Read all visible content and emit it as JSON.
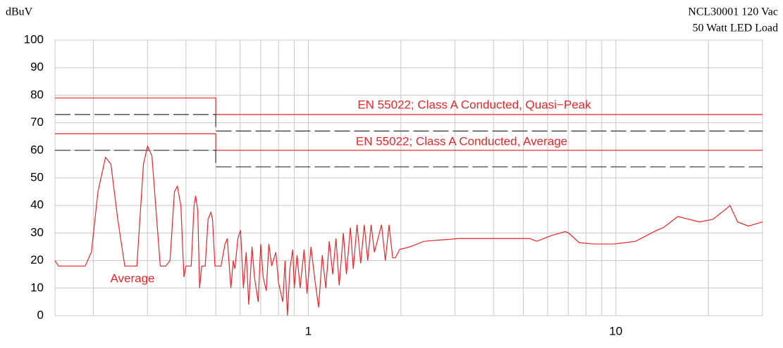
{
  "chart_data": {
    "type": "line",
    "y_label": "dBuV",
    "title_lines": [
      "NCL30001 120 Vac",
      "50 Watt LED Load"
    ],
    "log_x": true,
    "grid": true,
    "xlim": [
      0.15,
      30
    ],
    "xticks": [
      1,
      10
    ],
    "xminorticks": [
      0.2,
      0.3,
      0.4,
      0.5,
      0.6,
      0.7,
      0.8,
      0.9,
      2,
      3,
      4,
      5,
      6,
      7,
      8,
      9,
      20
    ],
    "ylim": [
      0,
      100
    ],
    "yticks": [
      0,
      10,
      20,
      30,
      40,
      50,
      60,
      70,
      80,
      90,
      100
    ],
    "series": [
      {
        "name": "EN 55022; Class A Conducted, Quasi−Peak",
        "color": "#e8262a",
        "dash": false,
        "x": [
          0.15,
          0.5,
          0.5,
          30
        ],
        "values": [
          79,
          79,
          73,
          73
        ]
      },
      {
        "name": "EN 55022; Class A Conducted, Average",
        "color": "#e8262a",
        "dash": false,
        "x": [
          0.15,
          0.5,
          0.5,
          30
        ],
        "values": [
          66,
          66,
          60,
          60
        ]
      },
      {
        "color": "#333333",
        "dash": true,
        "x": [
          0.15,
          0.5,
          0.5,
          30
        ],
        "values": [
          73,
          73,
          67,
          67
        ]
      },
      {
        "color": "#333333",
        "dash": true,
        "x": [
          0.15,
          0.5,
          0.5,
          30
        ],
        "values": [
          60,
          60,
          54,
          54
        ]
      },
      {
        "name": "Average",
        "color": "#e8262a",
        "dash": false,
        "x": [
          0.15,
          0.154,
          0.188,
          0.197,
          0.207,
          0.219,
          0.228,
          0.24,
          0.253,
          0.277,
          0.291,
          0.3,
          0.31,
          0.33,
          0.344,
          0.355,
          0.367,
          0.375,
          0.385,
          0.394,
          0.4,
          0.416,
          0.425,
          0.43,
          0.437,
          0.443,
          0.45,
          0.462,
          0.472,
          0.482,
          0.488,
          0.497,
          0.503,
          0.52,
          0.536,
          0.545,
          0.56,
          0.57,
          0.577,
          0.59,
          0.602,
          0.615,
          0.628,
          0.64,
          0.656,
          0.668,
          0.687,
          0.7,
          0.713,
          0.73,
          0.744,
          0.76,
          0.784,
          0.8,
          0.826,
          0.84,
          0.855,
          0.871,
          0.89,
          0.9,
          0.919,
          0.94,
          0.969,
          0.99,
          1.02,
          1.05,
          1.08,
          1.11,
          1.14,
          1.17,
          1.2,
          1.23,
          1.26,
          1.3,
          1.33,
          1.37,
          1.4,
          1.44,
          1.48,
          1.52,
          1.56,
          1.6,
          1.64,
          1.73,
          1.78,
          1.83,
          1.88,
          1.92,
          1.98,
          2.14,
          2.38,
          3.1,
          4.03,
          5.25,
          5.53,
          6.15,
          6.84,
          7.02,
          7.6,
          8.45,
          9.89,
          11.6,
          13.6,
          14.3,
          15.9,
          18.7,
          20.7,
          22.7,
          23.5,
          24.9,
          27,
          30
        ],
        "values": [
          20,
          18,
          18,
          23,
          45,
          57.5,
          55,
          35,
          18,
          18,
          55,
          61.5,
          58,
          18,
          18,
          20,
          45,
          47,
          40,
          14,
          18,
          18,
          40,
          43.5,
          38,
          10,
          18,
          18,
          35,
          37.5,
          35,
          18,
          18,
          18,
          26,
          28,
          10,
          20,
          17,
          28,
          31,
          10,
          23,
          4,
          25,
          14,
          5,
          26,
          14,
          9,
          26,
          18,
          23,
          12,
          5,
          20,
          0,
          17,
          24,
          10,
          22,
          10,
          24,
          8,
          25,
          13,
          3,
          22,
          10,
          27,
          15,
          28,
          11,
          30,
          15,
          32,
          17,
          33,
          19,
          33,
          20,
          33,
          23,
          33,
          20,
          33,
          21,
          21,
          24,
          25,
          27,
          28,
          28,
          28,
          27,
          29,
          30.5,
          30,
          26.5,
          26,
          26,
          27,
          31,
          32,
          36,
          34,
          35,
          38.5,
          40,
          34,
          32.5,
          34
        ]
      }
    ]
  }
}
